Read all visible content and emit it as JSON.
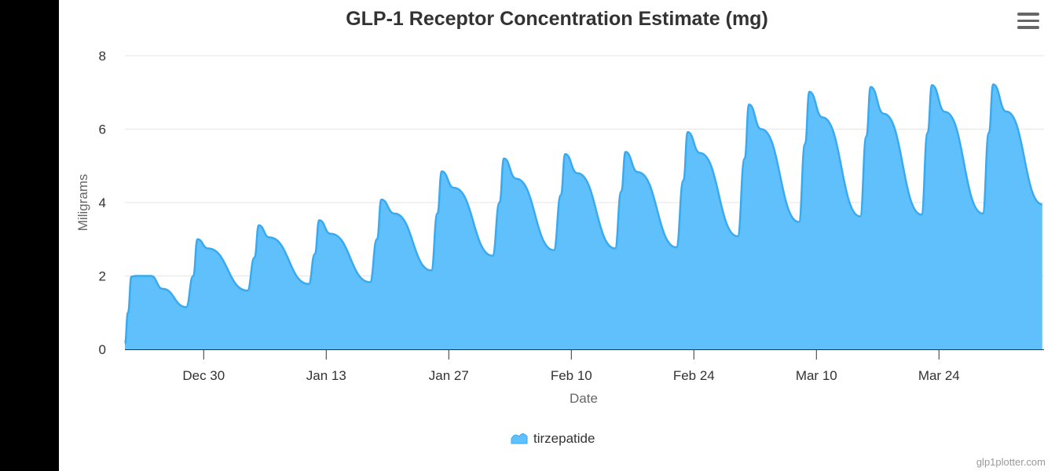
{
  "chart_data": {
    "type": "area",
    "title": "GLP-1 Receptor Concentration Estimate (mg)",
    "xlabel": "Date",
    "ylabel": "Miligrams",
    "ylim": [
      0,
      8
    ],
    "yticks": [
      0,
      2,
      4,
      6,
      8
    ],
    "xlim": [
      0,
      105
    ],
    "xticks": [
      {
        "day": 9,
        "label": "Dec 30"
      },
      {
        "day": 23,
        "label": "Jan 13"
      },
      {
        "day": 37,
        "label": "Jan 27"
      },
      {
        "day": 51,
        "label": "Feb 10"
      },
      {
        "day": 65,
        "label": "Feb 24"
      },
      {
        "day": 79,
        "label": "Mar 10"
      },
      {
        "day": 93,
        "label": "Mar 24"
      }
    ],
    "x_unit": "days since Dec 21",
    "legend": "bottom-center",
    "grid": true,
    "series": [
      {
        "name": "tirzepatide",
        "color": "#5fc0fb",
        "line_color": "#3aaaf0",
        "x": [
          0,
          0.35,
          0.75,
          1.2,
          3.0,
          4.3,
          7.0,
          7.8,
          8.3,
          9.5,
          14.0,
          14.8,
          15.3,
          16.5,
          21.0,
          21.7,
          22.2,
          23.5,
          28.0,
          28.8,
          29.3,
          30.8,
          35.0,
          35.7,
          36.2,
          37.6,
          42.0,
          42.8,
          43.3,
          44.7,
          49.0,
          49.8,
          50.3,
          51.7,
          56.0,
          56.7,
          57.2,
          58.6,
          63.0,
          63.8,
          64.3,
          65.7,
          70.0,
          70.8,
          71.3,
          72.7,
          77.0,
          77.7,
          78.2,
          79.7,
          84.0,
          84.7,
          85.2,
          86.7,
          91.0,
          91.7,
          92.2,
          93.7,
          98.0,
          98.7,
          99.2,
          100.7,
          104.8
        ],
        "y": [
          0.15,
          1.0,
          1.98,
          2.0,
          2.0,
          1.65,
          1.15,
          2.0,
          3.0,
          2.75,
          1.6,
          2.5,
          3.38,
          3.05,
          1.78,
          2.6,
          3.52,
          3.15,
          1.83,
          3.0,
          4.08,
          3.7,
          2.15,
          3.7,
          4.85,
          4.4,
          2.55,
          4.0,
          5.2,
          4.65,
          2.7,
          4.2,
          5.32,
          4.8,
          2.75,
          4.3,
          5.38,
          4.83,
          2.78,
          4.6,
          5.92,
          5.35,
          3.08,
          5.2,
          6.67,
          6.0,
          3.47,
          5.6,
          7.02,
          6.32,
          3.62,
          5.8,
          7.15,
          6.42,
          3.67,
          5.9,
          7.2,
          6.47,
          3.7,
          5.9,
          7.22,
          6.48,
          3.95
        ]
      }
    ]
  },
  "credits": "glp1plotter.com",
  "menu": {
    "icon": "menu-icon"
  }
}
